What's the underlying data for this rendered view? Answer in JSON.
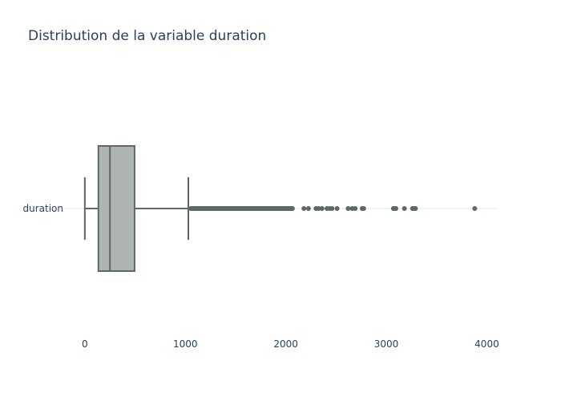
{
  "chart_data": {
    "type": "box",
    "title": "Distribution de la variable duration",
    "orientation": "horizontal",
    "category": "duration",
    "xlabel": "",
    "ylabel": "",
    "xlim": [
      -190,
      4100
    ],
    "xticks": [
      0,
      1000,
      2000,
      3000,
      4000
    ],
    "grid": false,
    "box": {
      "lower_fence": 0,
      "q1": 135,
      "median": 250,
      "q3": 495,
      "upper_fence": 1030
    },
    "dense_outlier_range": [
      1030,
      2090
    ],
    "outliers": [
      2180,
      2225,
      2300,
      2325,
      2360,
      2410,
      2440,
      2460,
      2510,
      2620,
      2660,
      2690,
      2760,
      2775,
      3070,
      3085,
      3095,
      3180,
      3260,
      3280,
      3290,
      3880
    ],
    "colors": {
      "box_fill": "#aeb3b4",
      "box_line": "#5e6866",
      "points": "#5e6866",
      "axis_line": "#eceff3",
      "text": "#2a3f5f"
    }
  }
}
